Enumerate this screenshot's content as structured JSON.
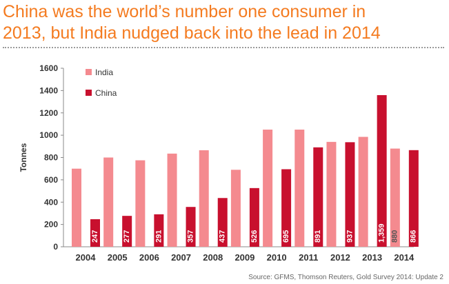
{
  "title_lines": [
    "China was the world’s number one consumer in",
    "2013, but India nudged back into the lead in 2014"
  ],
  "source": "Source: GFMS, Thomson Reuters, Gold Survey 2014: Update 2",
  "colors": {
    "title": "#f47b20",
    "india": "#f48a8f",
    "china": "#c8102e",
    "axis_text": "#333333"
  },
  "chart_data": {
    "type": "bar",
    "categories": [
      "2004",
      "2005",
      "2006",
      "2007",
      "2008",
      "2009",
      "2010",
      "2011",
      "2012",
      "2013",
      "2014"
    ],
    "series": [
      {
        "name": "India",
        "values": [
          700,
          800,
          775,
          835,
          865,
          690,
          1050,
          1050,
          940,
          985,
          880
        ],
        "data_labels": [
          "",
          "",
          "",
          "",
          "",
          "",
          "",
          "",
          "",
          "",
          "880"
        ]
      },
      {
        "name": "China",
        "values": [
          247,
          277,
          291,
          357,
          437,
          526,
          695,
          891,
          937,
          1359,
          866
        ],
        "data_labels": [
          "247",
          "277",
          "291",
          "357",
          "437",
          "526",
          "695",
          "891",
          "937",
          "1,359",
          "866"
        ]
      }
    ],
    "xlabel": "",
    "ylabel": "Tonnes",
    "ylim": [
      0,
      1600
    ],
    "yticks": [
      "0",
      "200",
      "400",
      "600",
      "800",
      "1000",
      "1200",
      "1400",
      "1600"
    ],
    "grid": false,
    "legend_position": "top-left"
  }
}
